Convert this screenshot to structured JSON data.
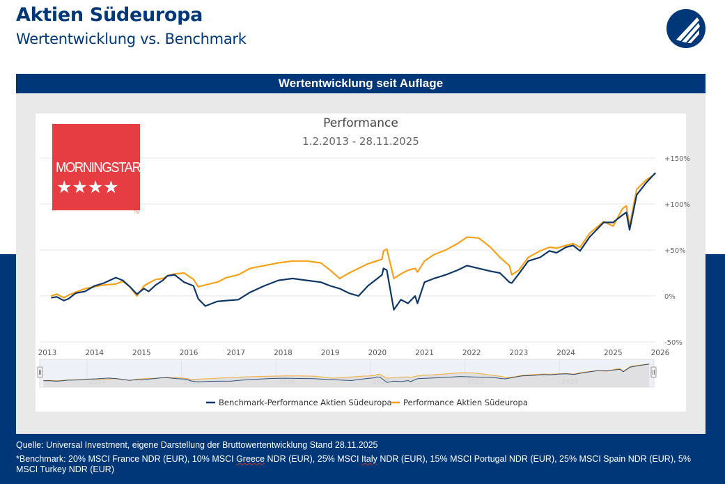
{
  "header": {
    "title": "Aktien Südeuropa",
    "subtitle": "Wertentwicklung vs. Benchmark",
    "logo_icon": "company-logo-circle-wing"
  },
  "panel": {
    "title": "Wertentwicklung seit Auflage"
  },
  "rating": {
    "brand": "MORNINGSTAR",
    "stars": 4,
    "stars_text": "★★★★",
    "tm": "TM",
    "color": "#e63d43"
  },
  "colors": {
    "navy": "#003778",
    "fund": "#f7a11a",
    "benchmark": "#0f3667"
  },
  "chart_data": {
    "type": "line",
    "title": "Performance",
    "subtitle": "1.2.2013 - 28.11.2025",
    "xlabel": "",
    "ylabel": "",
    "xlim": [
      2013,
      2026
    ],
    "ylim": [
      -50,
      150
    ],
    "grid": true,
    "y_ticks": [
      150,
      100,
      50,
      0,
      -50
    ],
    "y_tick_labels": [
      "+150%",
      "+100%",
      "+50%",
      "0%",
      "-50%"
    ],
    "x_ticks": [
      2013,
      2014,
      2015,
      2016,
      2017,
      2018,
      2019,
      2020,
      2021,
      2022,
      2023,
      2024,
      2025,
      2026
    ],
    "x_tick_labels": [
      "2013",
      "2014",
      "2015",
      "2016",
      "2017",
      "2018",
      "2019",
      "2020",
      "2021",
      "2022",
      "2023",
      "2024",
      "2025",
      "2026"
    ],
    "navigator_labels": [
      "2014",
      "2016",
      "2018",
      "2020",
      "2022",
      "2024"
    ],
    "legend_position": "bottom",
    "series": [
      {
        "name": "Benchmark-Performance Aktien Südeuropa",
        "color": "#0f3667",
        "x": [
          2013.08,
          2013.2,
          2013.35,
          2013.45,
          2013.6,
          2013.8,
          2014.0,
          2014.2,
          2014.45,
          2014.6,
          2014.75,
          2014.9,
          2015.05,
          2015.15,
          2015.3,
          2015.45,
          2015.55,
          2015.7,
          2015.9,
          2016.1,
          2016.2,
          2016.35,
          2016.6,
          2016.8,
          2017.05,
          2017.3,
          2017.6,
          2017.9,
          2018.2,
          2018.5,
          2018.8,
          2019.0,
          2019.2,
          2019.4,
          2019.6,
          2019.8,
          2020.1,
          2020.13,
          2020.2,
          2020.35,
          2020.5,
          2020.65,
          2020.8,
          2020.85,
          2021.0,
          2021.2,
          2021.45,
          2021.7,
          2021.9,
          2022.15,
          2022.4,
          2022.6,
          2022.8,
          2022.85,
          2023.0,
          2023.2,
          2023.45,
          2023.65,
          2023.8,
          2024.0,
          2024.15,
          2024.3,
          2024.5,
          2024.8,
          2025.0,
          2025.2,
          2025.28,
          2025.35,
          2025.5,
          2025.7,
          2025.9
        ],
        "values": [
          -2,
          -1,
          -5,
          -3,
          3,
          5,
          11,
          14,
          20,
          17,
          10,
          2,
          8,
          5,
          12,
          17,
          22,
          23,
          15,
          11,
          -3,
          -11,
          -6,
          -5,
          -4,
          4,
          11,
          17,
          19,
          17,
          15,
          11,
          8,
          3,
          0,
          11,
          23,
          30,
          28,
          -15,
          -4,
          -8,
          0,
          -8,
          15,
          19,
          23,
          28,
          33,
          30,
          27,
          25,
          15,
          14,
          24,
          38,
          42,
          49,
          47,
          53,
          55,
          49,
          64,
          80,
          80,
          88,
          91,
          72,
          110,
          123,
          134
        ]
      },
      {
        "name": "Performance Aktien Südeuropa",
        "color": "#f7a11a",
        "x": [
          2013.08,
          2013.2,
          2013.35,
          2013.45,
          2013.6,
          2013.8,
          2014.0,
          2014.2,
          2014.45,
          2014.6,
          2014.75,
          2014.9,
          2015.05,
          2015.15,
          2015.3,
          2015.45,
          2015.55,
          2015.7,
          2015.9,
          2016.1,
          2016.2,
          2016.35,
          2016.6,
          2016.8,
          2017.05,
          2017.3,
          2017.6,
          2017.9,
          2018.2,
          2018.5,
          2018.8,
          2019.0,
          2019.2,
          2019.4,
          2019.6,
          2019.8,
          2020.1,
          2020.13,
          2020.2,
          2020.35,
          2020.5,
          2020.65,
          2020.8,
          2020.85,
          2021.0,
          2021.2,
          2021.45,
          2021.7,
          2021.9,
          2022.15,
          2022.4,
          2022.6,
          2022.8,
          2022.85,
          2023.0,
          2023.2,
          2023.45,
          2023.65,
          2023.8,
          2024.0,
          2024.15,
          2024.3,
          2024.5,
          2024.8,
          2025.0,
          2025.2,
          2025.28,
          2025.35,
          2025.5,
          2025.7,
          2025.9
        ],
        "values": [
          0,
          2,
          -2,
          1,
          4,
          8,
          10,
          12,
          13,
          16,
          10,
          0,
          11,
          14,
          18,
          19,
          22,
          24,
          25,
          18,
          10,
          12,
          15,
          20,
          23,
          30,
          33,
          36,
          38,
          38,
          36,
          28,
          19,
          25,
          30,
          35,
          40,
          49,
          51,
          19,
          24,
          28,
          30,
          26,
          38,
          45,
          50,
          57,
          64,
          63,
          53,
          42,
          33,
          23,
          28,
          42,
          49,
          53,
          52,
          55,
          57,
          53,
          68,
          81,
          76,
          95,
          98,
          76,
          116,
          126,
          133
        ]
      }
    ]
  },
  "footer": {
    "source": "Quelle: Universal Investment, eigene Darstellung der Bruttowertentwicklung Stand 28.11.2025",
    "benchmark_parts": [
      "*Benchmark: 20% MSCI France NDR (EUR), 10% MSCI ",
      "Greece",
      " NDR (EUR), 25% MSCI ",
      "Italy",
      " NDR (EUR), 15% MSCI Portugal NDR (EUR), 25% MSCI Spain NDR (EUR), 5% MSCI Turkey NDR (EUR)"
    ]
  }
}
